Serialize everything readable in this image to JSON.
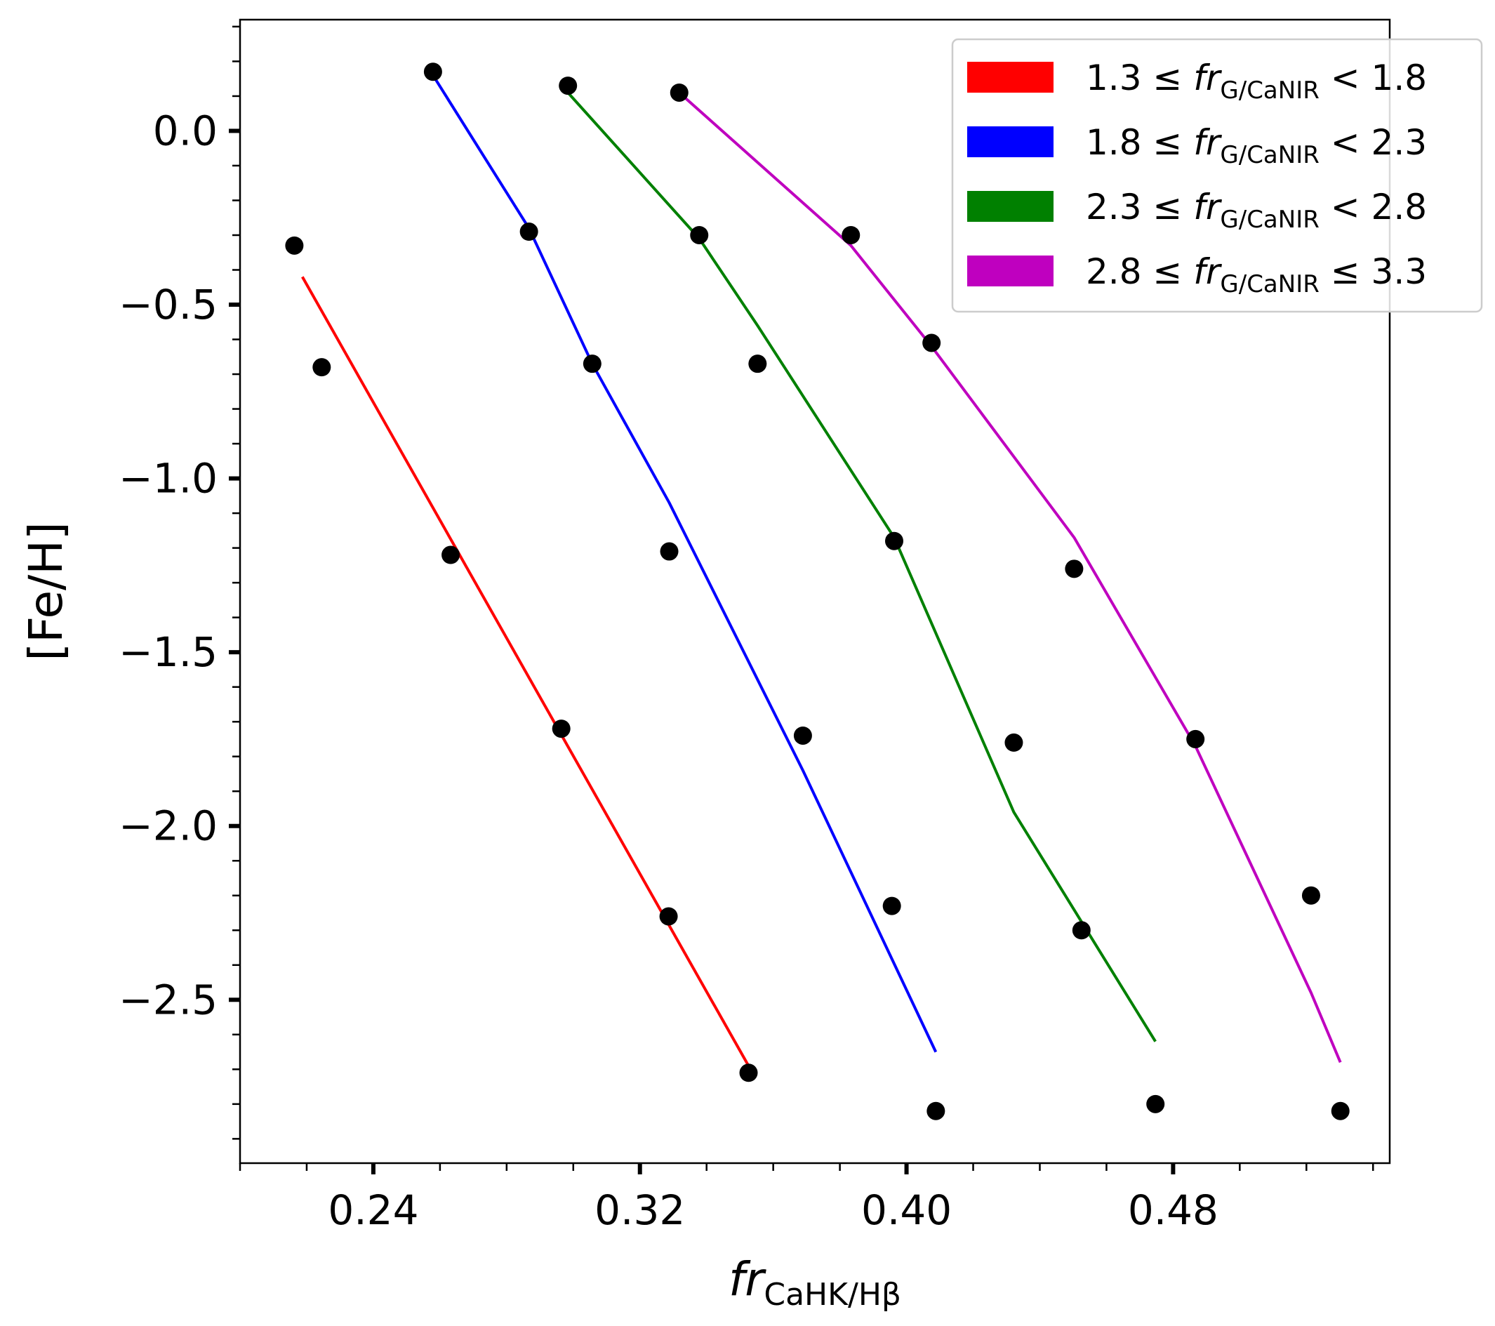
{
  "chart_data": {
    "type": "scatter",
    "xlabel": {
      "base": "fr",
      "sub": "CaHK/Hβ"
    },
    "ylabel": "[Fe/H]",
    "xlim": [
      0.2,
      0.545
    ],
    "ylim": [
      -2.97,
      0.32
    ],
    "xticks": [
      {
        "value": 0.24,
        "label": "0.24"
      },
      {
        "value": 0.32,
        "label": "0.32"
      },
      {
        "value": 0.4,
        "label": "0.40"
      },
      {
        "value": 0.48,
        "label": "0.48"
      }
    ],
    "yticks": [
      {
        "value": 0.0,
        "label": "0.0"
      },
      {
        "value": -0.5,
        "label": "−0.5"
      },
      {
        "value": -1.0,
        "label": "−1.0"
      },
      {
        "value": -1.5,
        "label": "−1.5"
      },
      {
        "value": -2.0,
        "label": "−2.0"
      },
      {
        "value": -2.5,
        "label": "−2.5"
      }
    ],
    "grid": false,
    "legend_position": "top-right",
    "series": [
      {
        "name": {
          "lo": "1.3",
          "op1": "≤",
          "base": "fr",
          "sub": "G/CaNIR",
          "op2": "<",
          "hi": "1.8"
        },
        "color": "#ff0000",
        "points": [
          {
            "x": 0.2163,
            "y": -0.33
          },
          {
            "x": 0.2245,
            "y": -0.68
          },
          {
            "x": 0.2632,
            "y": -1.22
          },
          {
            "x": 0.2964,
            "y": -1.72
          },
          {
            "x": 0.3286,
            "y": -2.26
          },
          {
            "x": 0.3526,
            "y": -2.71
          }
        ],
        "line": [
          {
            "x": 0.2187,
            "y": -0.42
          },
          {
            "x": 0.3526,
            "y": -2.69
          }
        ]
      },
      {
        "name": {
          "lo": "1.8",
          "op1": "≤",
          "base": "fr",
          "sub": "G/CaNIR",
          "op2": "<",
          "hi": "2.3"
        },
        "color": "#0000ff",
        "points": [
          {
            "x": 0.2579,
            "y": 0.17
          },
          {
            "x": 0.2867,
            "y": -0.29
          },
          {
            "x": 0.3057,
            "y": -0.67
          },
          {
            "x": 0.3288,
            "y": -1.21
          },
          {
            "x": 0.3689,
            "y": -1.74
          },
          {
            "x": 0.3956,
            "y": -2.23
          },
          {
            "x": 0.4088,
            "y": -2.82
          }
        ],
        "line": [
          {
            "x": 0.2579,
            "y": 0.16
          },
          {
            "x": 0.2867,
            "y": -0.28
          },
          {
            "x": 0.3057,
            "y": -0.67
          },
          {
            "x": 0.3288,
            "y": -1.07
          },
          {
            "x": 0.3689,
            "y": -1.84
          },
          {
            "x": 0.4088,
            "y": -2.65
          }
        ]
      },
      {
        "name": {
          "lo": "2.3",
          "op1": "≤",
          "base": "fr",
          "sub": "G/CaNIR",
          "op2": "<",
          "hi": "2.8"
        },
        "color": "#008000",
        "points": [
          {
            "x": 0.2984,
            "y": 0.13
          },
          {
            "x": 0.3378,
            "y": -0.3
          },
          {
            "x": 0.3553,
            "y": -0.67
          },
          {
            "x": 0.3963,
            "y": -1.18
          },
          {
            "x": 0.4322,
            "y": -1.76
          },
          {
            "x": 0.4525,
            "y": -2.3
          },
          {
            "x": 0.4747,
            "y": -2.8
          }
        ],
        "line": [
          {
            "x": 0.2984,
            "y": 0.11
          },
          {
            "x": 0.3378,
            "y": -0.31
          },
          {
            "x": 0.3553,
            "y": -0.56
          },
          {
            "x": 0.3963,
            "y": -1.17
          },
          {
            "x": 0.4322,
            "y": -1.96
          },
          {
            "x": 0.4747,
            "y": -2.62
          }
        ]
      },
      {
        "name": {
          "lo": "2.8",
          "op1": "≤",
          "base": "fr",
          "sub": "G/CaNIR",
          "op2": "≤",
          "hi": "3.3"
        },
        "color": "#bf00bf",
        "points": [
          {
            "x": 0.3318,
            "y": 0.11
          },
          {
            "x": 0.3833,
            "y": -0.3
          },
          {
            "x": 0.4075,
            "y": -0.61
          },
          {
            "x": 0.4503,
            "y": -1.26
          },
          {
            "x": 0.4867,
            "y": -1.75
          },
          {
            "x": 0.5214,
            "y": -2.2
          },
          {
            "x": 0.5302,
            "y": -2.82
          }
        ],
        "line": [
          {
            "x": 0.3318,
            "y": 0.11
          },
          {
            "x": 0.3833,
            "y": -0.33
          },
          {
            "x": 0.4075,
            "y": -0.62
          },
          {
            "x": 0.4503,
            "y": -1.17
          },
          {
            "x": 0.4867,
            "y": -1.77
          },
          {
            "x": 0.5214,
            "y": -2.48
          },
          {
            "x": 0.5302,
            "y": -2.68
          }
        ]
      }
    ]
  }
}
